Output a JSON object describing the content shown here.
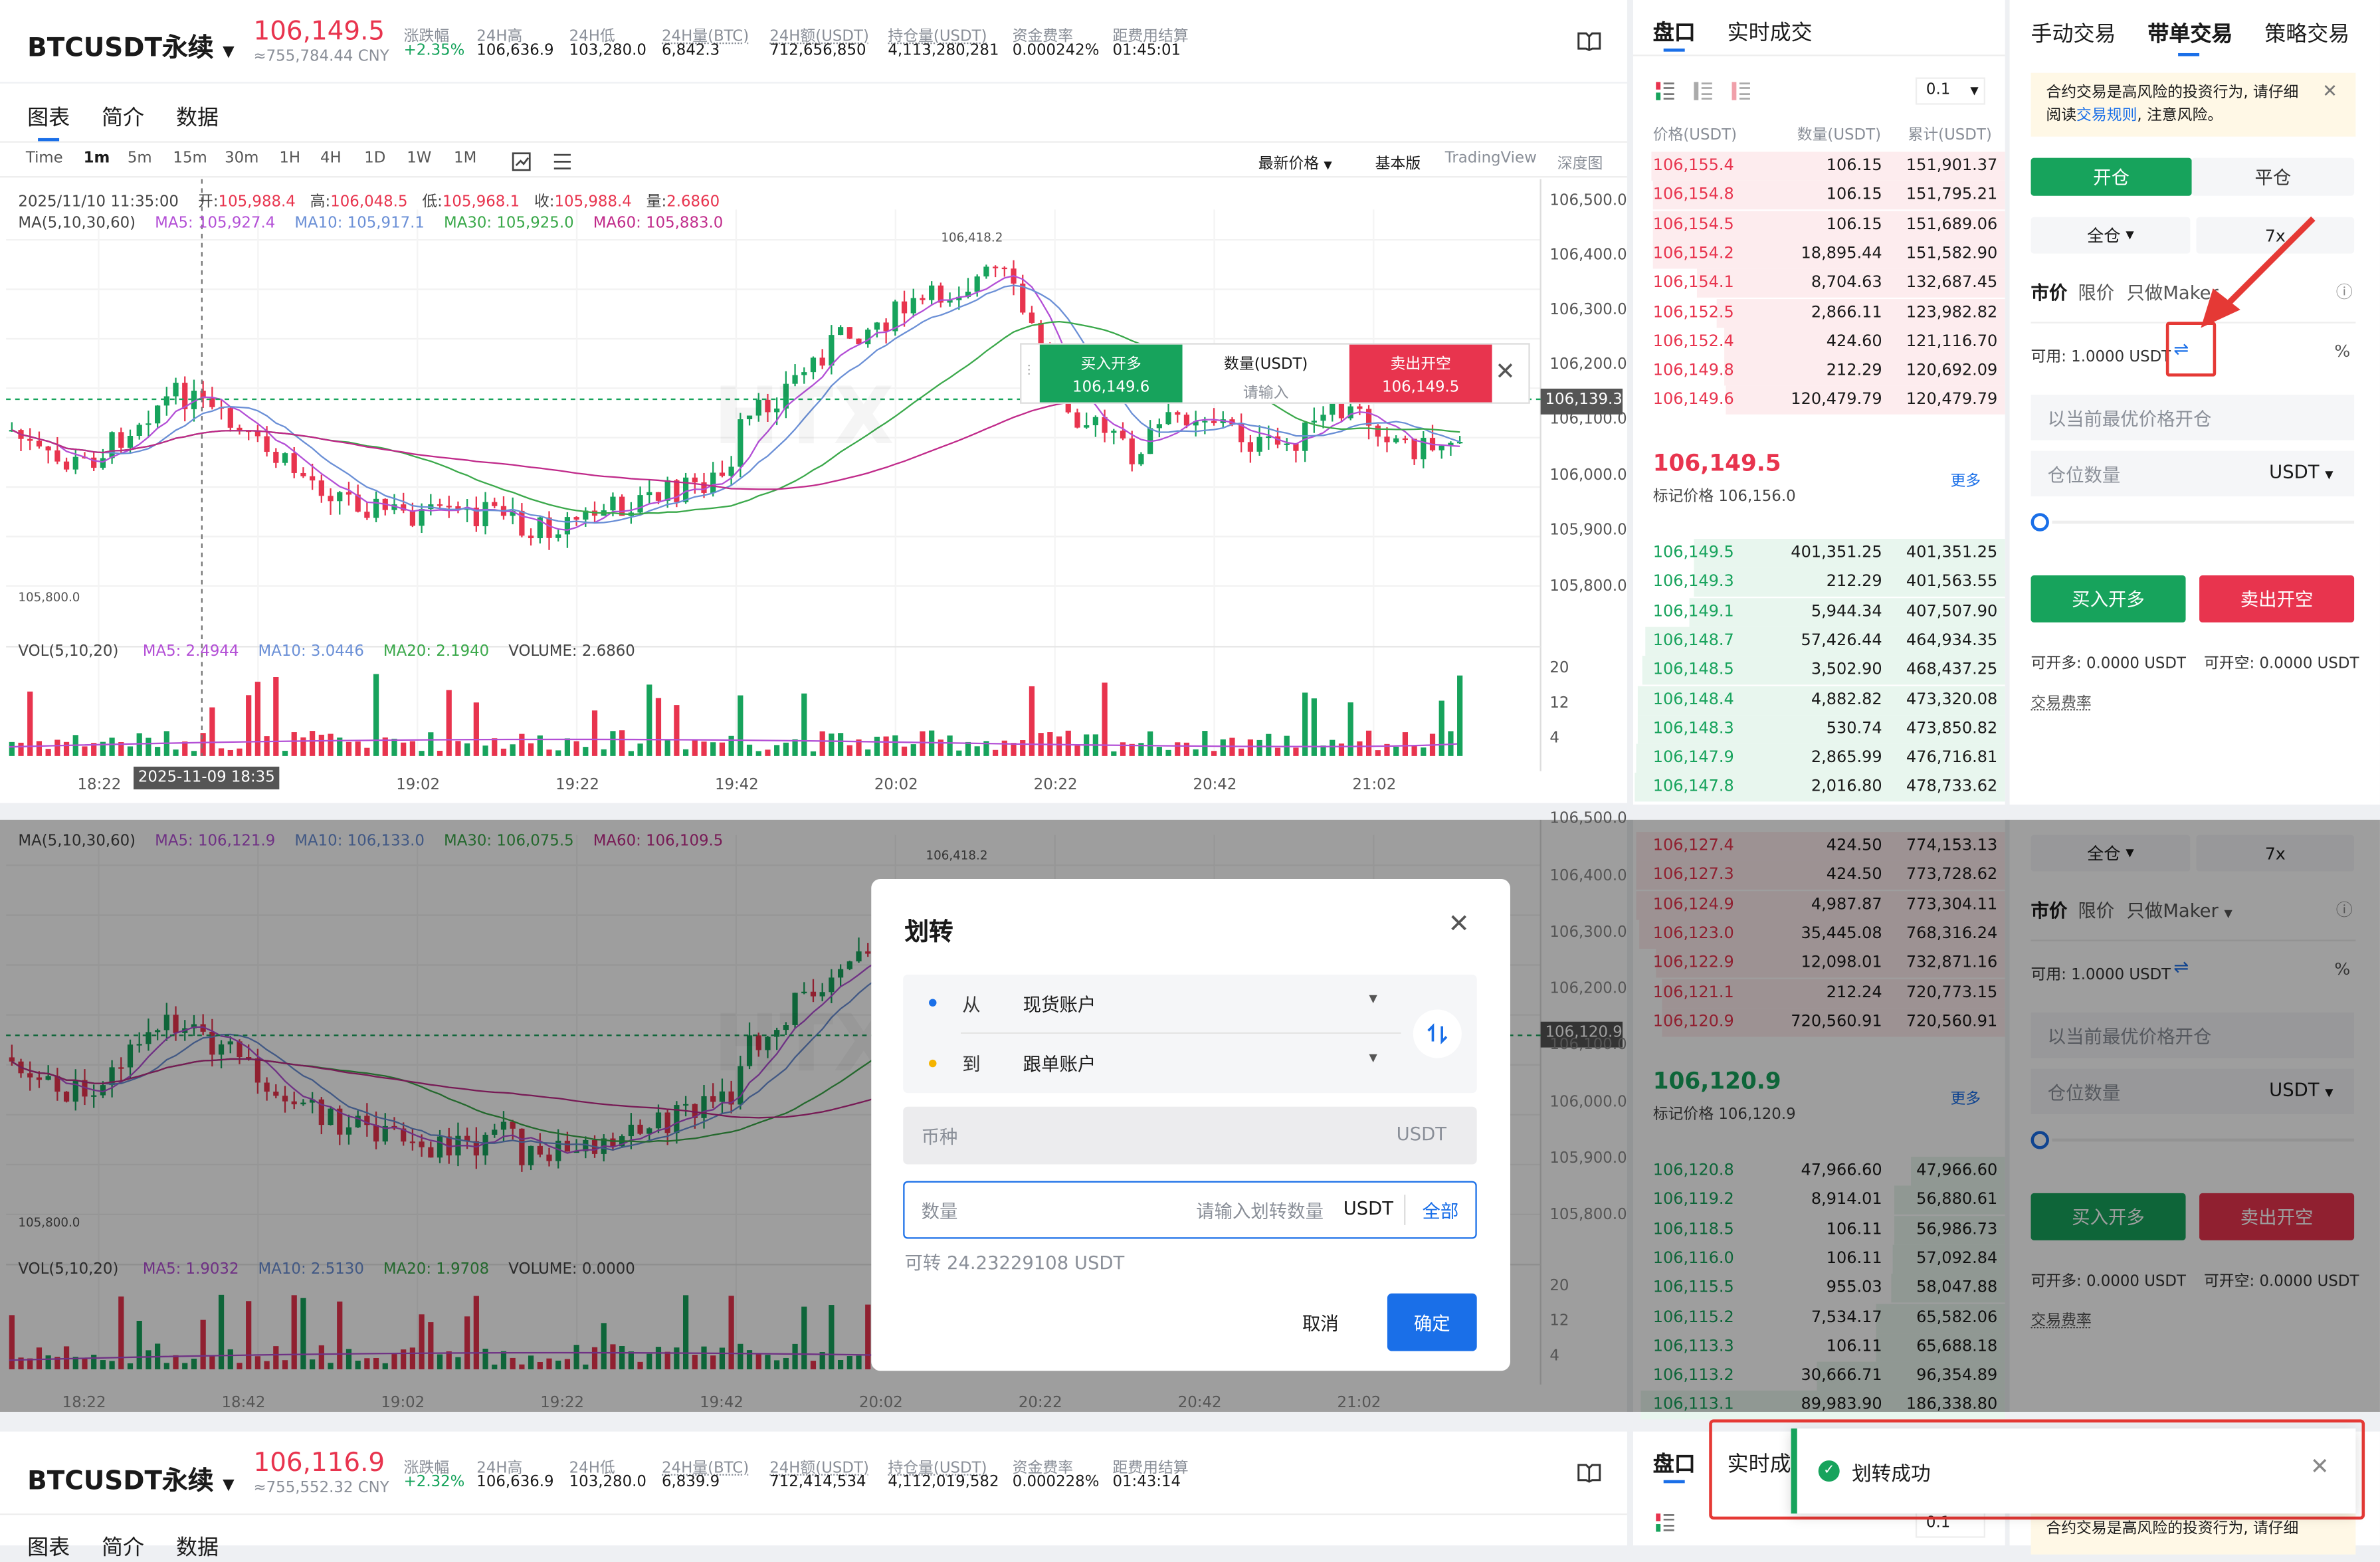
{
  "header": {
    "symbol": "BTCUSDT永续",
    "price": "106,149.5",
    "price_cny": "≈755,784.44 CNY",
    "stats": [
      {
        "label": "涨跌幅",
        "value": "+2.35%"
      },
      {
        "label": "24H高",
        "value": "106,636.9"
      },
      {
        "label": "24H低",
        "value": "103,280.0"
      },
      {
        "label": "24H量(BTC)",
        "value": "6,842.3"
      },
      {
        "label": "24H额(USDT)",
        "value": "712,656,850"
      },
      {
        "label": "持仓量(USDT)",
        "value": "4,113,280,281"
      },
      {
        "label": "资金费率",
        "value": "0.000242%"
      },
      {
        "label": "距费用结算",
        "value": "01:45:01"
      }
    ]
  },
  "chart_tabs": [
    "图表",
    "简介",
    "数据"
  ],
  "intervals": [
    "Time",
    "1m",
    "5m",
    "15m",
    "30m",
    "1H",
    "4H",
    "1D",
    "1W",
    "1M"
  ],
  "chart_toolbar": {
    "price_type": "最新价格",
    "basic": "基本版",
    "tradingview": "TradingView",
    "depth": "深度图"
  },
  "ohlc_line": {
    "date": "2025/11/10 11:35:00",
    "open_label": "开:",
    "open": "105,988.4",
    "high_label": "高:",
    "high": "106,048.5",
    "low_label": "低:",
    "low": "105,968.1",
    "close_label": "收:",
    "close": "105,988.4",
    "vol_label": "量:",
    "vol": "2.6860"
  },
  "ma_line": {
    "label": "MA(5,10,30,60)",
    "ma5": "MA5: 105,927.4",
    "ma10": "MA10: 105,917.1",
    "ma30": "MA30: 105,925.0",
    "ma60": "MA60: 105,883.0"
  },
  "price_axis": [
    "106,500.0",
    "106,400.0",
    "106,300.0",
    "106,200.0",
    "106,100.0",
    "106,000.0",
    "105,900.0",
    "105,800.0"
  ],
  "current_price_tag": "106,139.3",
  "max_label": "106,418.2",
  "min_label": "105,800.0",
  "quick_trade": {
    "buy": "买入开多",
    "buy_price": "106,149.6",
    "qty_label": "数量(USDT)",
    "qty_placeholder": "请输入",
    "sell": "卖出开空",
    "sell_price": "106,149.5"
  },
  "vol_line": {
    "label": "VOL(5,10,20)",
    "ma5": "MA5: 2.4944",
    "ma10": "MA10: 3.0446",
    "ma20": "MA20: 2.1940",
    "volume": "VOLUME: 2.6860"
  },
  "vol_axis": [
    "20",
    "12",
    "4"
  ],
  "time_axis": [
    "18:22",
    "19:02",
    "19:22",
    "19:42",
    "20:02",
    "20:22",
    "20:42",
    "21:02"
  ],
  "crosshair_time": "2025-11-09 18:35",
  "orderbook": {
    "tabs": [
      "盘口",
      "实时成交"
    ],
    "precision": "0.1",
    "headers": [
      "价格(USDT)",
      "数量(USDT)",
      "累计(USDT)"
    ],
    "asks": [
      [
        "106,155.4",
        "106.15",
        "151,901.37"
      ],
      [
        "106,154.8",
        "106.15",
        "151,795.21"
      ],
      [
        "106,154.5",
        "106.15",
        "151,689.06"
      ],
      [
        "106,154.2",
        "18,895.44",
        "151,582.90"
      ],
      [
        "106,154.1",
        "8,704.63",
        "132,687.45"
      ],
      [
        "106,152.5",
        "2,866.11",
        "123,982.82"
      ],
      [
        "106,152.4",
        "424.60",
        "121,116.70"
      ],
      [
        "106,149.8",
        "212.29",
        "120,692.09"
      ],
      [
        "106,149.6",
        "120,479.79",
        "120,479.79"
      ]
    ],
    "mid_price": "106,149.5",
    "mark_price": "标记价格 106,156.0",
    "more": "更多",
    "bids": [
      [
        "106,149.5",
        "401,351.25",
        "401,351.25"
      ],
      [
        "106,149.3",
        "212.29",
        "401,563.55"
      ],
      [
        "106,149.1",
        "5,944.34",
        "407,507.90"
      ],
      [
        "106,148.7",
        "57,426.44",
        "464,934.35"
      ],
      [
        "106,148.5",
        "3,502.90",
        "468,437.25"
      ],
      [
        "106,148.4",
        "4,882.82",
        "473,320.08"
      ],
      [
        "106,148.3",
        "530.74",
        "473,850.82"
      ],
      [
        "106,147.9",
        "2,865.99",
        "476,716.81"
      ],
      [
        "106,147.8",
        "2,016.80",
        "478,733.62"
      ]
    ]
  },
  "trade_panel": {
    "tabs": [
      "手动交易",
      "带单交易",
      "策略交易"
    ],
    "risk_notice_1": "合约交易是高风险的投资行为, 请仔细",
    "risk_notice_2a": "阅读",
    "risk_notice_link": "交易规则",
    "risk_notice_2b": ", 注意风险。",
    "open_tab": "开仓",
    "close_tab": "平仓",
    "margin_mode": "全仓",
    "leverage": "7x",
    "order_types": [
      "市价",
      "限价",
      "只做Maker"
    ],
    "available": "可用: 1.0000 USDT",
    "best_price_placeholder": "以当前最优价格开仓",
    "position_qty": "仓位数量",
    "unit": "USDT",
    "buy_long": "买入开多",
    "sell_short": "卖出开空",
    "can_open_long": "可开多: 0.0000 USDT",
    "can_open_short": "可开空: 0.0000 USDT",
    "fee_rate": "交易费率"
  },
  "second_frame": {
    "ma_label": "MA(5,10,30,60)",
    "ma5": "MA5: 106,121.9",
    "ma10": "MA10: 106,133.0",
    "ma30": "MA30: 106,075.5",
    "ma60": "MA60: 106,109.5",
    "max_label": "106,418.2",
    "min_label": "105,800.0",
    "price_axis": [
      "106,500.0",
      "106,400.0",
      "106,300.0",
      "106,200.0",
      "106,100.0",
      "106,000.0",
      "105,900.0",
      "105,800.0"
    ],
    "current_price_tag": "106,120.9",
    "vol_label": "VOL(5,10,20)",
    "vol_ma5": "MA5: 1.9032",
    "vol_ma10": "MA10: 2.5130",
    "vol_ma20": "MA20: 1.9708",
    "vol_volume": "VOLUME: 0.0000",
    "vol_axis": [
      "20",
      "12",
      "4"
    ],
    "time_axis": [
      "18:22",
      "18:42",
      "19:02",
      "19:22",
      "19:42",
      "20:02",
      "20:22",
      "20:42",
      "21:02"
    ],
    "asks": [
      [
        "106,127.4",
        "424.50",
        "774,153.13"
      ],
      [
        "106,127.3",
        "424.50",
        "773,728.62"
      ],
      [
        "106,124.9",
        "4,987.87",
        "773,304.11"
      ],
      [
        "106,123.0",
        "35,445.08",
        "768,316.24"
      ],
      [
        "106,122.9",
        "12,098.01",
        "732,871.16"
      ],
      [
        "106,121.1",
        "212.24",
        "720,773.15"
      ],
      [
        "106,120.9",
        "720,560.91",
        "720,560.91"
      ]
    ],
    "mid_price": "106,120.9",
    "mark_price": "标记价格 106,120.9",
    "more": "更多",
    "bids": [
      [
        "106,120.8",
        "47,966.60",
        "47,966.60"
      ],
      [
        "106,119.2",
        "8,914.01",
        "56,880.61"
      ],
      [
        "106,118.5",
        "106.11",
        "56,986.73"
      ],
      [
        "106,116.0",
        "106.11",
        "57,092.84"
      ],
      [
        "106,115.5",
        "955.03",
        "58,047.88"
      ],
      [
        "106,115.2",
        "7,534.17",
        "65,582.06"
      ],
      [
        "106,113.3",
        "106.11",
        "65,688.18"
      ],
      [
        "106,113.2",
        "30,666.71",
        "96,354.89"
      ],
      [
        "106,113.1",
        "89,983.90",
        "186,338.80"
      ]
    ],
    "margin_mode": "全仓",
    "leverage": "7x",
    "order_types": [
      "市价",
      "限价",
      "只做Maker"
    ],
    "available": "可用: 1.0000 USDT",
    "best_price_placeholder": "以当前最优价格开仓",
    "position_qty": "仓位数量",
    "unit": "USDT",
    "buy_long": "买入开多",
    "sell_short": "卖出开空",
    "can_open_long": "可开多: 0.0000 USDT",
    "can_open_short": "可开空: 0.0000 USDT",
    "fee_rate": "交易费率"
  },
  "transfer_dialog": {
    "title": "划转",
    "from_label": "从",
    "from_value": "现货账户",
    "to_label": "到",
    "to_value": "跟单账户",
    "coin_label": "币种",
    "coin_value": "USDT",
    "amount_label": "数量",
    "amount_placeholder": "请输入划转数量",
    "amount_unit": "USDT",
    "all": "全部",
    "available": "可转 24.23229108 USDT",
    "cancel": "取消",
    "confirm": "确定"
  },
  "third_frame": {
    "symbol": "BTCUSDT永续",
    "price": "106,116.9",
    "price_cny": "≈755,552.32 CNY",
    "stats": [
      {
        "label": "涨跌幅",
        "value": "+2.32%"
      },
      {
        "label": "24H高",
        "value": "106,636.9"
      },
      {
        "label": "24H低",
        "value": "103,280.0"
      },
      {
        "label": "24H量(BTC)",
        "value": "6,839.9"
      },
      {
        "label": "24H额(USDT)",
        "value": "712,414,534"
      },
      {
        "label": "持仓量(USDT)",
        "value": "4,112,019,582"
      },
      {
        "label": "资金费率",
        "value": "0.000228%"
      },
      {
        "label": "距费用结算",
        "value": "01:43:14"
      }
    ],
    "tabs": [
      "盘口",
      "实时成"
    ],
    "tab_cut": [
      "图表",
      "简介",
      "数据"
    ],
    "precision": "0.1",
    "risk_notice_1": "合约交易是高风险的投资行为, 请仔细",
    "toast": "划转成功"
  },
  "colors": {
    "up": "#17a35c",
    "down": "#e8344e",
    "accent": "#1a6fe8",
    "annotation": "#e53935"
  }
}
